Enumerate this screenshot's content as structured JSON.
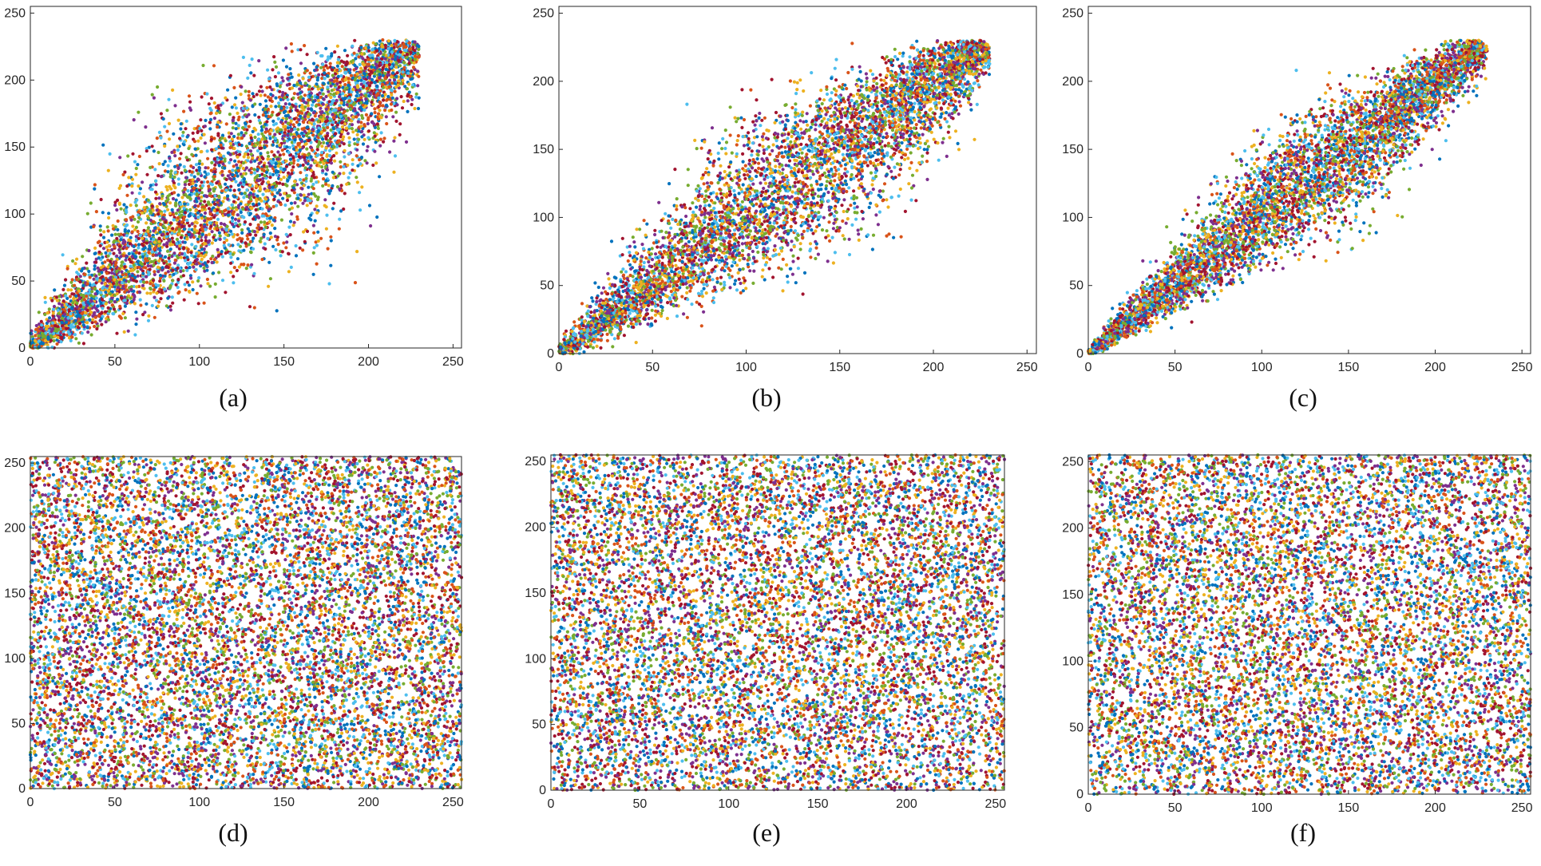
{
  "colors": [
    "#0072BD",
    "#D95319",
    "#EDB120",
    "#7E2F8E",
    "#77AC30",
    "#4DBEEE",
    "#A2142F"
  ],
  "chart_data": [
    {
      "type": "scatter",
      "caption": "(a)",
      "distribution": "correlated",
      "spread": 1.0,
      "xlim": [
        0,
        255
      ],
      "ylim": [
        0,
        255
      ],
      "xticks": [
        0,
        50,
        100,
        150,
        200,
        250
      ],
      "yticks": [
        0,
        50,
        100,
        150,
        200,
        250
      ],
      "xtick_labels": [
        "0",
        "50",
        "100",
        "150",
        "200",
        "250"
      ],
      "ytick_labels": [
        "0",
        "50",
        "100",
        "150",
        "200",
        "250"
      ]
    },
    {
      "type": "scatter",
      "caption": "(b)",
      "distribution": "correlated",
      "spread": 0.8,
      "xlim": [
        0,
        255
      ],
      "ylim": [
        0,
        255
      ],
      "xticks": [
        0,
        50,
        100,
        150,
        200,
        250
      ],
      "yticks": [
        0,
        50,
        100,
        150,
        200,
        250
      ],
      "xtick_labels": [
        "0",
        "50",
        "100",
        "150",
        "200",
        "250"
      ],
      "ytick_labels": [
        "0",
        "50",
        "100",
        "150",
        "200",
        "250"
      ]
    },
    {
      "type": "scatter",
      "caption": "(c)",
      "distribution": "correlated",
      "spread": 0.6,
      "xlim": [
        0,
        255
      ],
      "ylim": [
        0,
        255
      ],
      "xticks": [
        0,
        50,
        100,
        150,
        200,
        250
      ],
      "yticks": [
        0,
        50,
        100,
        150,
        200,
        250
      ],
      "xtick_labels": [
        "0",
        "50",
        "100",
        "150",
        "200",
        "250"
      ],
      "ytick_labels": [
        "0",
        "50",
        "100",
        "150",
        "200",
        "250"
      ]
    },
    {
      "type": "scatter",
      "caption": "(d)",
      "distribution": "uniform",
      "xlim": [
        0,
        255
      ],
      "ylim": [
        0,
        255
      ],
      "xticks": [
        0,
        50,
        100,
        150,
        200,
        250
      ],
      "yticks": [
        0,
        50,
        100,
        150,
        200,
        250
      ],
      "xtick_labels": [
        "0",
        "50",
        "100",
        "150",
        "200",
        "250"
      ],
      "ytick_labels": [
        "0",
        "50",
        "100",
        "150",
        "200",
        "250"
      ]
    },
    {
      "type": "scatter",
      "caption": "(e)",
      "distribution": "uniform",
      "xlim": [
        0,
        255
      ],
      "ylim": [
        0,
        255
      ],
      "xticks": [
        0,
        50,
        100,
        150,
        200,
        250
      ],
      "yticks": [
        0,
        50,
        100,
        150,
        200,
        250
      ],
      "xtick_labels": [
        "0",
        "50",
        "100",
        "150",
        "200",
        "250"
      ],
      "ytick_labels": [
        "0",
        "50",
        "100",
        "150",
        "200",
        "250"
      ]
    },
    {
      "type": "scatter",
      "caption": "(f)",
      "distribution": "uniform",
      "xlim": [
        0,
        255
      ],
      "ylim": [
        0,
        255
      ],
      "xticks": [
        0,
        50,
        100,
        150,
        200,
        250
      ],
      "yticks": [
        0,
        50,
        100,
        150,
        200,
        250
      ],
      "xtick_labels": [
        "0",
        "50",
        "100",
        "150",
        "200",
        "250"
      ],
      "ytick_labels": [
        "0",
        "50",
        "100",
        "150",
        "200",
        "250"
      ]
    }
  ]
}
